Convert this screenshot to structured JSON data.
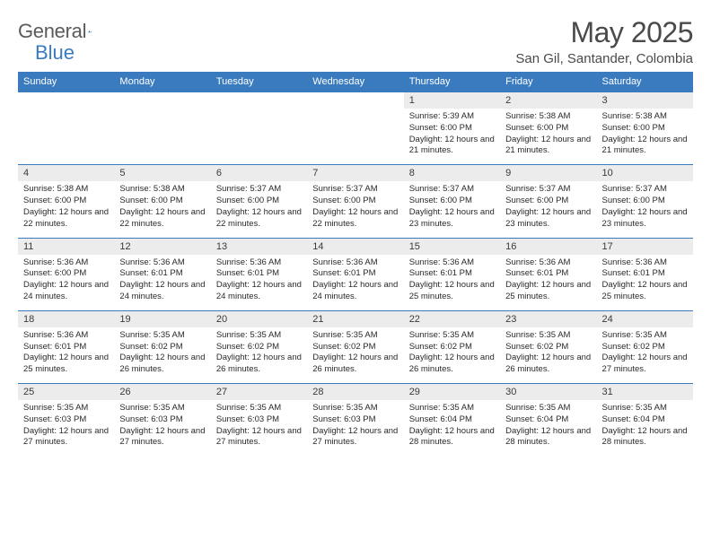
{
  "logo": {
    "text1": "General",
    "text2": "Blue"
  },
  "header": {
    "month": "May 2025",
    "location": "San Gil, Santander, Colombia"
  },
  "dayHeaders": [
    "Sunday",
    "Monday",
    "Tuesday",
    "Wednesday",
    "Thursday",
    "Friday",
    "Saturday"
  ],
  "colors": {
    "header_bg": "#3a7bbf",
    "header_text": "#ffffff",
    "daynum_bg": "#ececec",
    "border": "#3a7bbf",
    "text": "#2a2a2a",
    "title": "#4a4a4a"
  },
  "weeks": [
    [
      null,
      null,
      null,
      null,
      {
        "n": "1",
        "r": "5:39 AM",
        "s": "6:00 PM",
        "d": "12 hours and 21 minutes."
      },
      {
        "n": "2",
        "r": "5:38 AM",
        "s": "6:00 PM",
        "d": "12 hours and 21 minutes."
      },
      {
        "n": "3",
        "r": "5:38 AM",
        "s": "6:00 PM",
        "d": "12 hours and 21 minutes."
      }
    ],
    [
      {
        "n": "4",
        "r": "5:38 AM",
        "s": "6:00 PM",
        "d": "12 hours and 22 minutes."
      },
      {
        "n": "5",
        "r": "5:38 AM",
        "s": "6:00 PM",
        "d": "12 hours and 22 minutes."
      },
      {
        "n": "6",
        "r": "5:37 AM",
        "s": "6:00 PM",
        "d": "12 hours and 22 minutes."
      },
      {
        "n": "7",
        "r": "5:37 AM",
        "s": "6:00 PM",
        "d": "12 hours and 22 minutes."
      },
      {
        "n": "8",
        "r": "5:37 AM",
        "s": "6:00 PM",
        "d": "12 hours and 23 minutes."
      },
      {
        "n": "9",
        "r": "5:37 AM",
        "s": "6:00 PM",
        "d": "12 hours and 23 minutes."
      },
      {
        "n": "10",
        "r": "5:37 AM",
        "s": "6:00 PM",
        "d": "12 hours and 23 minutes."
      }
    ],
    [
      {
        "n": "11",
        "r": "5:36 AM",
        "s": "6:00 PM",
        "d": "12 hours and 24 minutes."
      },
      {
        "n": "12",
        "r": "5:36 AM",
        "s": "6:01 PM",
        "d": "12 hours and 24 minutes."
      },
      {
        "n": "13",
        "r": "5:36 AM",
        "s": "6:01 PM",
        "d": "12 hours and 24 minutes."
      },
      {
        "n": "14",
        "r": "5:36 AM",
        "s": "6:01 PM",
        "d": "12 hours and 24 minutes."
      },
      {
        "n": "15",
        "r": "5:36 AM",
        "s": "6:01 PM",
        "d": "12 hours and 25 minutes."
      },
      {
        "n": "16",
        "r": "5:36 AM",
        "s": "6:01 PM",
        "d": "12 hours and 25 minutes."
      },
      {
        "n": "17",
        "r": "5:36 AM",
        "s": "6:01 PM",
        "d": "12 hours and 25 minutes."
      }
    ],
    [
      {
        "n": "18",
        "r": "5:36 AM",
        "s": "6:01 PM",
        "d": "12 hours and 25 minutes."
      },
      {
        "n": "19",
        "r": "5:35 AM",
        "s": "6:02 PM",
        "d": "12 hours and 26 minutes."
      },
      {
        "n": "20",
        "r": "5:35 AM",
        "s": "6:02 PM",
        "d": "12 hours and 26 minutes."
      },
      {
        "n": "21",
        "r": "5:35 AM",
        "s": "6:02 PM",
        "d": "12 hours and 26 minutes."
      },
      {
        "n": "22",
        "r": "5:35 AM",
        "s": "6:02 PM",
        "d": "12 hours and 26 minutes."
      },
      {
        "n": "23",
        "r": "5:35 AM",
        "s": "6:02 PM",
        "d": "12 hours and 26 minutes."
      },
      {
        "n": "24",
        "r": "5:35 AM",
        "s": "6:02 PM",
        "d": "12 hours and 27 minutes."
      }
    ],
    [
      {
        "n": "25",
        "r": "5:35 AM",
        "s": "6:03 PM",
        "d": "12 hours and 27 minutes."
      },
      {
        "n": "26",
        "r": "5:35 AM",
        "s": "6:03 PM",
        "d": "12 hours and 27 minutes."
      },
      {
        "n": "27",
        "r": "5:35 AM",
        "s": "6:03 PM",
        "d": "12 hours and 27 minutes."
      },
      {
        "n": "28",
        "r": "5:35 AM",
        "s": "6:03 PM",
        "d": "12 hours and 27 minutes."
      },
      {
        "n": "29",
        "r": "5:35 AM",
        "s": "6:04 PM",
        "d": "12 hours and 28 minutes."
      },
      {
        "n": "30",
        "r": "5:35 AM",
        "s": "6:04 PM",
        "d": "12 hours and 28 minutes."
      },
      {
        "n": "31",
        "r": "5:35 AM",
        "s": "6:04 PM",
        "d": "12 hours and 28 minutes."
      }
    ]
  ],
  "labels": {
    "sunrise": "Sunrise: ",
    "sunset": "Sunset: ",
    "daylight": "Daylight: "
  }
}
